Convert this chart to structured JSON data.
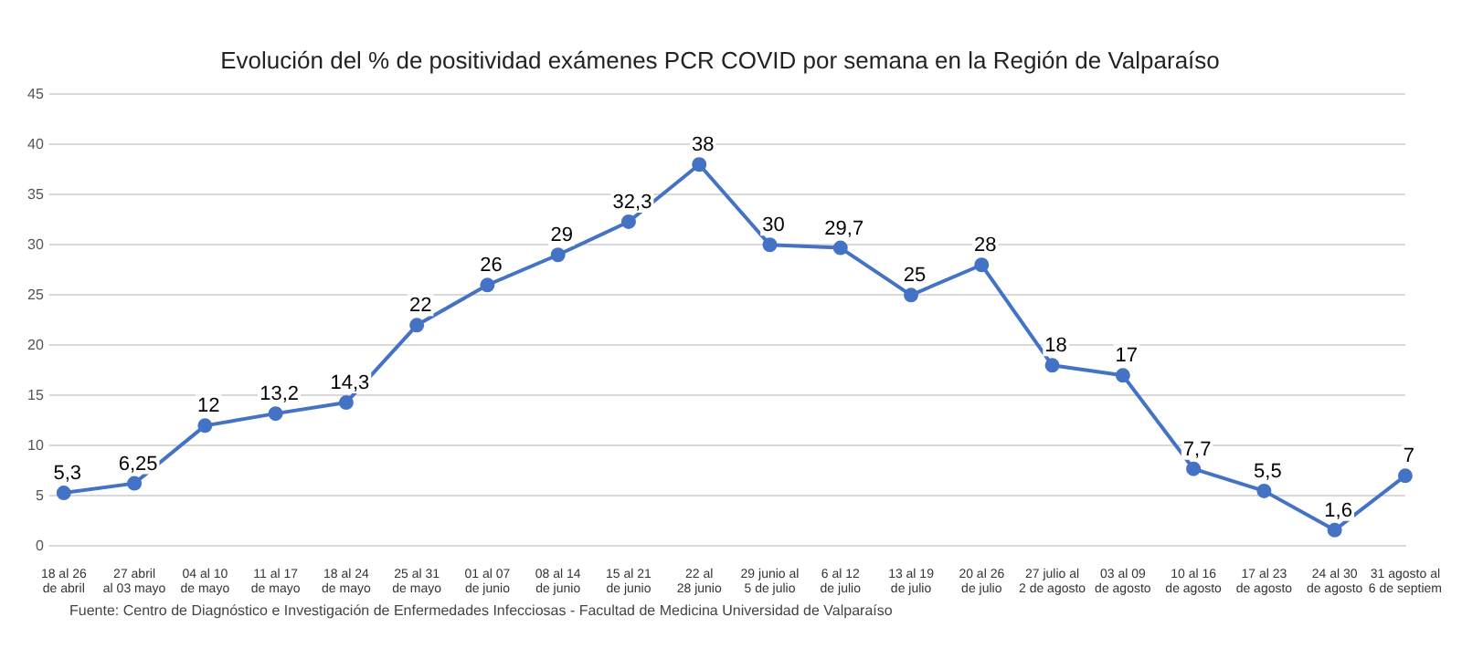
{
  "chart_data": {
    "type": "line",
    "title": "Evolución del % de positividad exámenes PCR COVID por semana en la Región de Valparaíso",
    "categories": [
      "18 al 26 de abril",
      "27 abril al 03 mayo",
      "04 al 10 de mayo",
      "11 al 17 de mayo",
      "18 al 24 de mayo",
      "25 al 31 de mayo",
      "01 al 07 de junio",
      "08 al 14 de junio",
      "15 al 21 de junio",
      "22 al 28 junio",
      "29 junio al 5 de julio",
      "6 al 12 de julio",
      "13 al 19 de julio",
      "20 al 26 de julio",
      "27 julio al 2 de agosto",
      "03 al 09 de agosto",
      "10 al 16 de agosto",
      "17 al 23 de agosto",
      "24 al 30 de agosto",
      "31 agosto al 6 de septiem"
    ],
    "series": [
      {
        "color": "#4472c4",
        "values": [
          5.3,
          6.25,
          12,
          13.2,
          14.3,
          22,
          26,
          29,
          32.3,
          38,
          30,
          29.7,
          25,
          28,
          18,
          17,
          7.7,
          5.5,
          1.6,
          7
        ],
        "value_labels": [
          "5,3",
          "6,25",
          "12",
          "13,2",
          "14,3",
          "22",
          "26",
          "29",
          "32,3",
          "38",
          "30",
          "29,7",
          "25",
          "28",
          "18",
          "17",
          "7,7",
          "5,5",
          "1,6",
          "7"
        ]
      }
    ],
    "ylim": [
      0,
      45
    ],
    "yticks": [
      0,
      5,
      10,
      15,
      20,
      25,
      30,
      35,
      40,
      45
    ],
    "grid": "y",
    "legend": false,
    "marker": "circle",
    "line_style": "solid",
    "annotations": [
      "Fuente: Centro de Diagnóstico e Investigación de Enfermedades Infecciosas - Facultad de Medicina Universidad de Valparaíso"
    ]
  }
}
